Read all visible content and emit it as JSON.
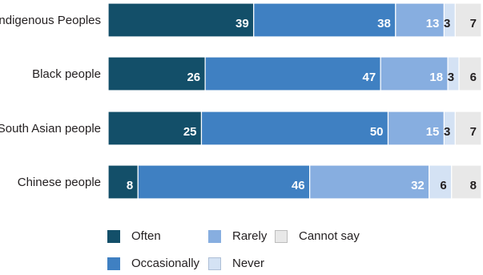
{
  "chart_data": {
    "type": "bar",
    "orientation": "horizontal",
    "stacked": true,
    "categories": [
      "Indigenous Peoples",
      "Black people",
      "South Asian people",
      "Chinese people"
    ],
    "series": [
      {
        "name": "Often",
        "values": [
          39,
          26,
          25,
          8
        ],
        "color": "#134f69"
      },
      {
        "name": "Occasionally",
        "values": [
          38,
          47,
          50,
          46
        ],
        "color": "#3f80c2"
      },
      {
        "name": "Rarely",
        "values": [
          13,
          18,
          15,
          32
        ],
        "color": "#87aee0"
      },
      {
        "name": "Never",
        "values": [
          3,
          3,
          3,
          6
        ],
        "color": "#d4e2f4"
      },
      {
        "name": "Cannot say",
        "values": [
          7,
          6,
          7,
          8
        ],
        "color": "#e8e8e8"
      }
    ],
    "xlim": [
      0,
      100
    ],
    "grid": false,
    "legend_position": "bottom"
  },
  "legend": {
    "items": [
      {
        "label": "Often",
        "color": "#134f69"
      },
      {
        "label": "Rarely",
        "color": "#87aee0"
      },
      {
        "label": "Cannot say",
        "color": "#e8e8e8"
      },
      {
        "label": "Occasionally",
        "color": "#3f80c2"
      },
      {
        "label": "Never",
        "color": "#d4e2f4"
      }
    ]
  }
}
